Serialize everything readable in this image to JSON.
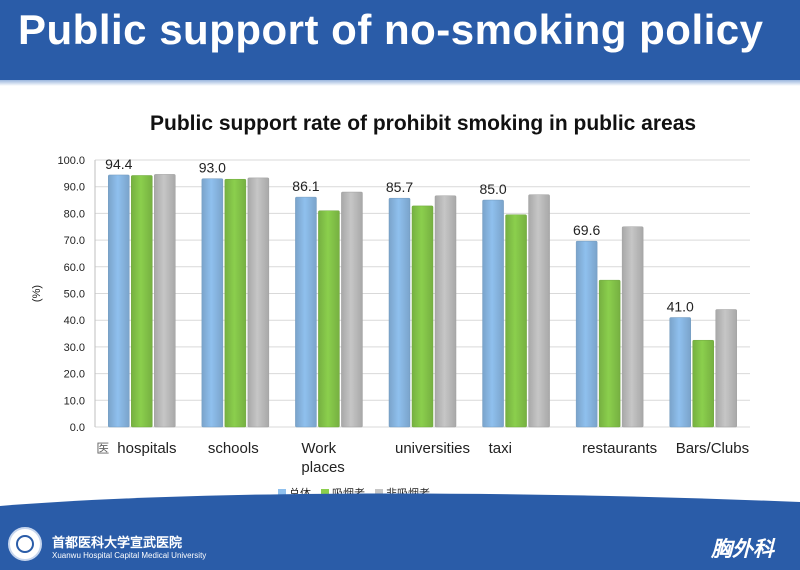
{
  "header": {
    "title": "Public support of no-smoking policy"
  },
  "footer": {
    "institution_cn": "首都医科大学宣武医院",
    "institution_en": "Xuanwu Hospital Capital Medical University",
    "department": "胸外科"
  },
  "colors": {
    "header_bg": "#2a5ca8",
    "blue": "#8fc0ee",
    "green": "#8bcf4d",
    "gray": "#c6c6c6",
    "footer_bg": "#2a5ca8"
  },
  "chart_data": {
    "type": "bar",
    "title": "Public support rate of prohibit smoking in public areas",
    "ylabel": "(%)",
    "ylim": [
      0,
      100
    ],
    "yticks": [
      "0.0",
      "10.0",
      "20.0",
      "30.0",
      "40.0",
      "50.0",
      "60.0",
      "70.0",
      "80.0",
      "90.0",
      "100.0"
    ],
    "grid": true,
    "legend_position": "bottom",
    "categories": [
      "hospitals",
      "schools",
      "Work places",
      "universities",
      "taxi",
      "restaurants",
      "Bars/Clubs"
    ],
    "category_lines": [
      [
        "医",
        "hospitals"
      ],
      [
        "schools"
      ],
      [
        "Work",
        "places"
      ],
      [
        "universities"
      ],
      [
        "taxi"
      ],
      [
        "restaurants"
      ],
      [
        "Bars/Clubs"
      ]
    ],
    "series": [
      {
        "name": "总体",
        "color": "#8fc0ee",
        "values": [
          94.4,
          93.0,
          86.1,
          85.7,
          85.0,
          69.6,
          41.0
        ]
      },
      {
        "name": "吸烟者",
        "color": "#8bcf4d",
        "values": [
          94.2,
          92.8,
          81.0,
          82.8,
          79.5,
          55.0,
          32.5
        ]
      },
      {
        "name": "非吸烟者",
        "color": "#c6c6c6",
        "values": [
          94.6,
          93.3,
          88.0,
          86.6,
          87.0,
          75.0,
          44.0
        ]
      }
    ],
    "data_labels": [
      "94.4",
      "93.0",
      "86.1",
      "85.7",
      "85.0",
      "69.6",
      "41.0"
    ]
  }
}
